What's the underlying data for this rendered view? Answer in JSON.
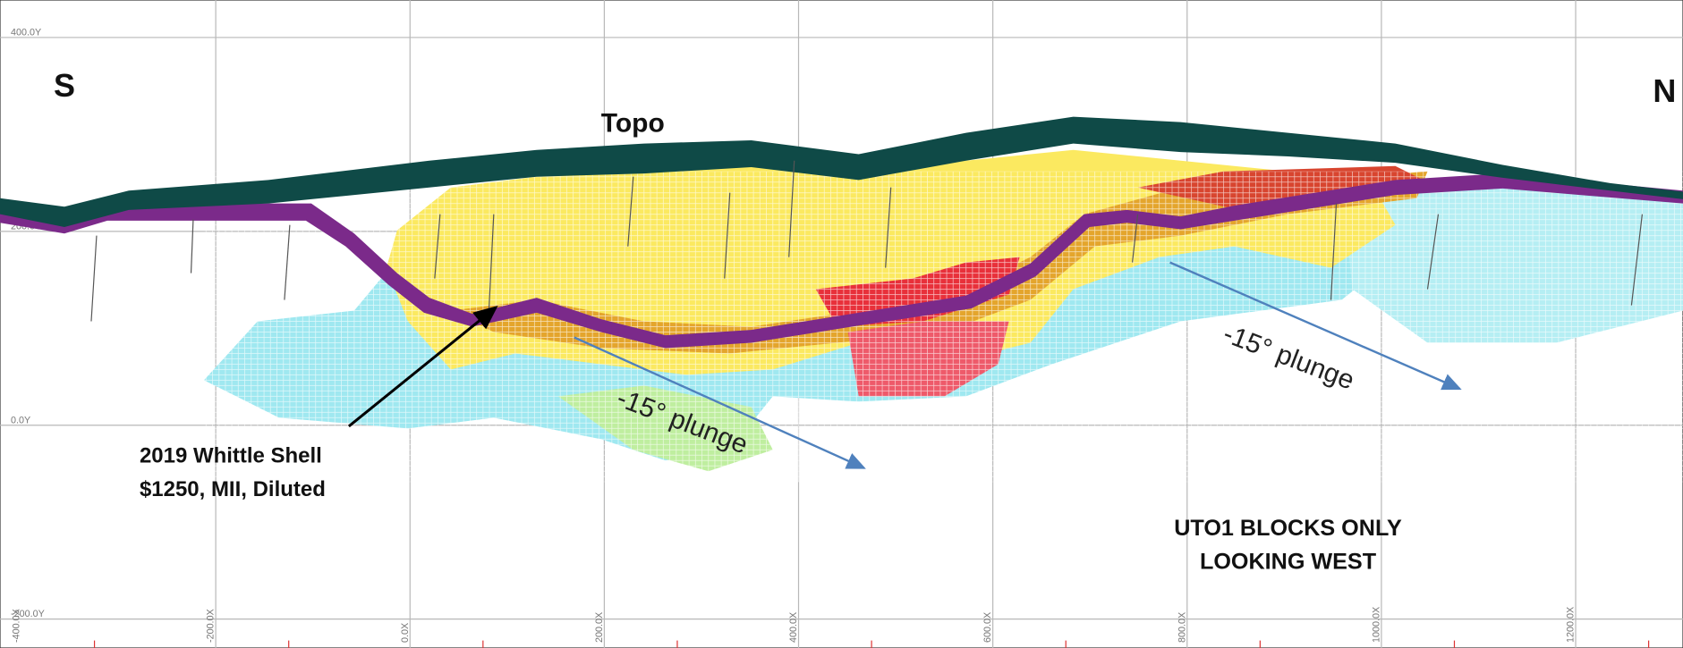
{
  "labels": {
    "left": "S",
    "right": "N",
    "topo": "Topo",
    "shell": [
      "2019 Whittle Shell",
      "$1250, MII, Diluted"
    ],
    "plunge": [
      "-15° plunge",
      "-15° plunge"
    ],
    "note": [
      "UTO1 BLOCKS ONLY",
      "LOOKING WEST"
    ]
  },
  "grid": {
    "y_labels": [
      "400.0Y",
      "200.0Y",
      "0.0Y",
      "-200.0Y"
    ],
    "x_labels": [
      "-400.0X",
      "-200.0X",
      "0.0X",
      "200.0X",
      "400.0X",
      "600.0X",
      "800.0X",
      "1000.0X",
      "1200.0X"
    ]
  }
}
